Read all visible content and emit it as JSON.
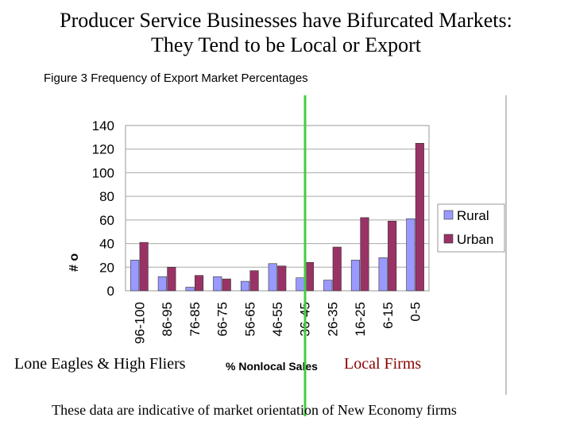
{
  "slide": {
    "title_line1": "Producer Service Businesses have Bifurcated Markets:",
    "title_line2": "They Tend to be Local or Export",
    "footer": "These data are indicative of market orientation of New Economy firms"
  },
  "annotations": {
    "left": "Lone Eagles & High Fliers",
    "right": "Local Firms",
    "left_color": "#000000",
    "right_color": "#8b0000"
  },
  "chart_data": {
    "type": "bar",
    "title": "Figure 3  Frequency of Export Market Percentages",
    "xlabel": "% Nonlocal Sales",
    "ylabel": "# o",
    "categories": [
      "96-100",
      "86-95",
      "76-85",
      "66-75",
      "56-65",
      "46-55",
      "36-45",
      "26-35",
      "16-25",
      "6-15",
      "0-5"
    ],
    "series": [
      {
        "name": "Rural",
        "color": "#9999ff",
        "values": [
          26,
          12,
          3,
          12,
          8,
          23,
          11,
          9,
          26,
          28,
          61
        ]
      },
      {
        "name": "Urban",
        "color": "#993366",
        "values": [
          41,
          20,
          13,
          10,
          17,
          21,
          24,
          37,
          62,
          59,
          125
        ]
      }
    ],
    "ylim": [
      0,
      140
    ],
    "yticks": [
      0,
      20,
      40,
      60,
      80,
      100,
      120,
      140
    ],
    "grid": true,
    "legend": "right",
    "divider_color": "#44cc44"
  }
}
